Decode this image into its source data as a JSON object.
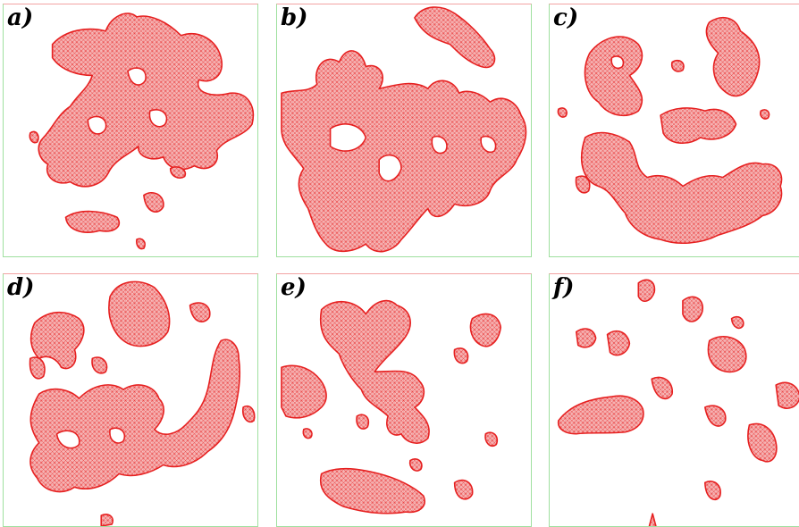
{
  "colors": {
    "density": "#e62020",
    "panel_border": "#9fe09f",
    "background": "#ffffff"
  },
  "panels": [
    {
      "label": "a)"
    },
    {
      "label": "b)"
    },
    {
      "label": "c)"
    },
    {
      "label": "d)"
    },
    {
      "label": "e)"
    },
    {
      "label": "f)"
    }
  ]
}
